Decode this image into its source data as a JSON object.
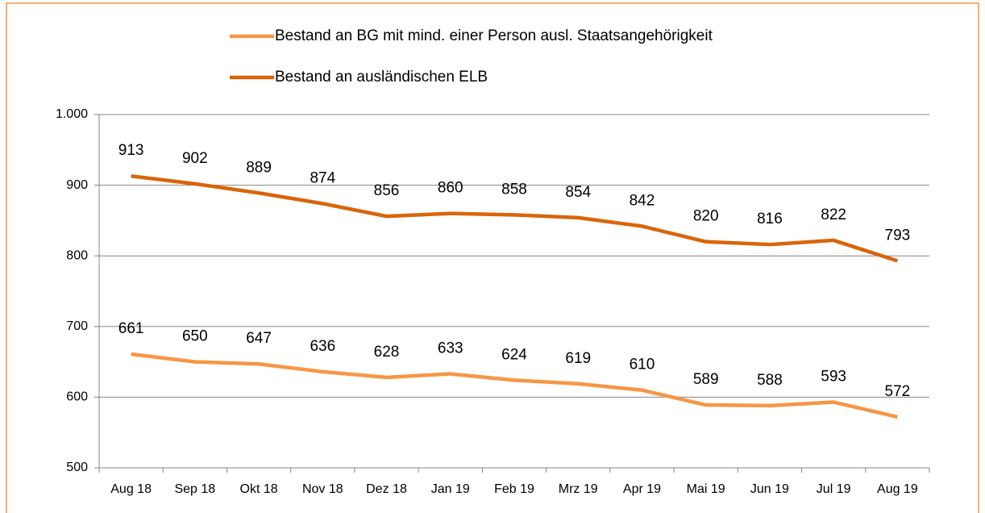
{
  "chart_data": {
    "type": "line",
    "categories": [
      "Aug 18",
      "Sep 18",
      "Okt 18",
      "Nov 18",
      "Dez 18",
      "Jan 19",
      "Feb 19",
      "Mrz 19",
      "Apr 19",
      "Mai 19",
      "Jun 19",
      "Jul 19",
      "Aug 19"
    ],
    "series": [
      {
        "name": "Bestand an BG mit mind. einer Person ausl. Staatsangehörigkeit",
        "color": "#f79646",
        "values": [
          661,
          650,
          647,
          636,
          628,
          633,
          624,
          619,
          610,
          589,
          588,
          593,
          572
        ]
      },
      {
        "name": "Bestand an ausländischen ELB",
        "color": "#d9650b",
        "values": [
          913,
          902,
          889,
          874,
          856,
          860,
          858,
          854,
          842,
          820,
          816,
          822,
          793
        ]
      }
    ],
    "ylim": [
      500,
      1000
    ],
    "yticks": [
      500,
      600,
      700,
      800,
      900,
      {
        "value": 1000,
        "label": "1.000"
      }
    ],
    "grid": true
  }
}
